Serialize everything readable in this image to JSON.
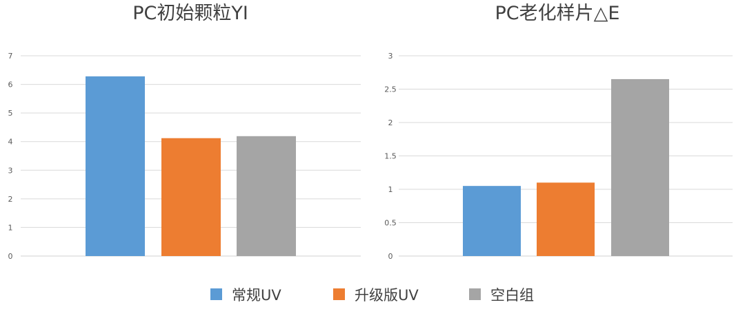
{
  "colors": {
    "regular": "#5b9bd5",
    "upgraded": "#ed7d31",
    "blank": "#a5a5a5"
  },
  "legend": [
    {
      "label": "常规UV",
      "color": "#5b9bd5"
    },
    {
      "label": "升级版UV",
      "color": "#ed7d31"
    },
    {
      "label": "空白组",
      "color": "#a5a5a5"
    }
  ],
  "chart_data": [
    {
      "type": "bar",
      "title": "PC初始颗粒YI",
      "xlabel": "",
      "ylabel": "",
      "ylim": [
        0,
        7
      ],
      "yticks": [
        0,
        1,
        2,
        3,
        4,
        5,
        6,
        7
      ],
      "grid": true,
      "legend_position": "bottom",
      "series": [
        {
          "name": "常规UV",
          "values": [
            6.28
          ]
        },
        {
          "name": "升级版UV",
          "values": [
            4.12
          ]
        },
        {
          "name": "空白组",
          "values": [
            4.19
          ]
        }
      ]
    },
    {
      "type": "bar",
      "title": "PC老化样片△E",
      "xlabel": "",
      "ylabel": "",
      "ylim": [
        0,
        3
      ],
      "yticks": [
        0,
        0.5,
        1,
        1.5,
        2,
        2.5,
        3
      ],
      "grid": true,
      "legend_position": "bottom",
      "series": [
        {
          "name": "常规UV",
          "values": [
            1.05
          ]
        },
        {
          "name": "升级版UV",
          "values": [
            1.1
          ]
        },
        {
          "name": "空白组",
          "values": [
            2.65
          ]
        }
      ]
    }
  ]
}
